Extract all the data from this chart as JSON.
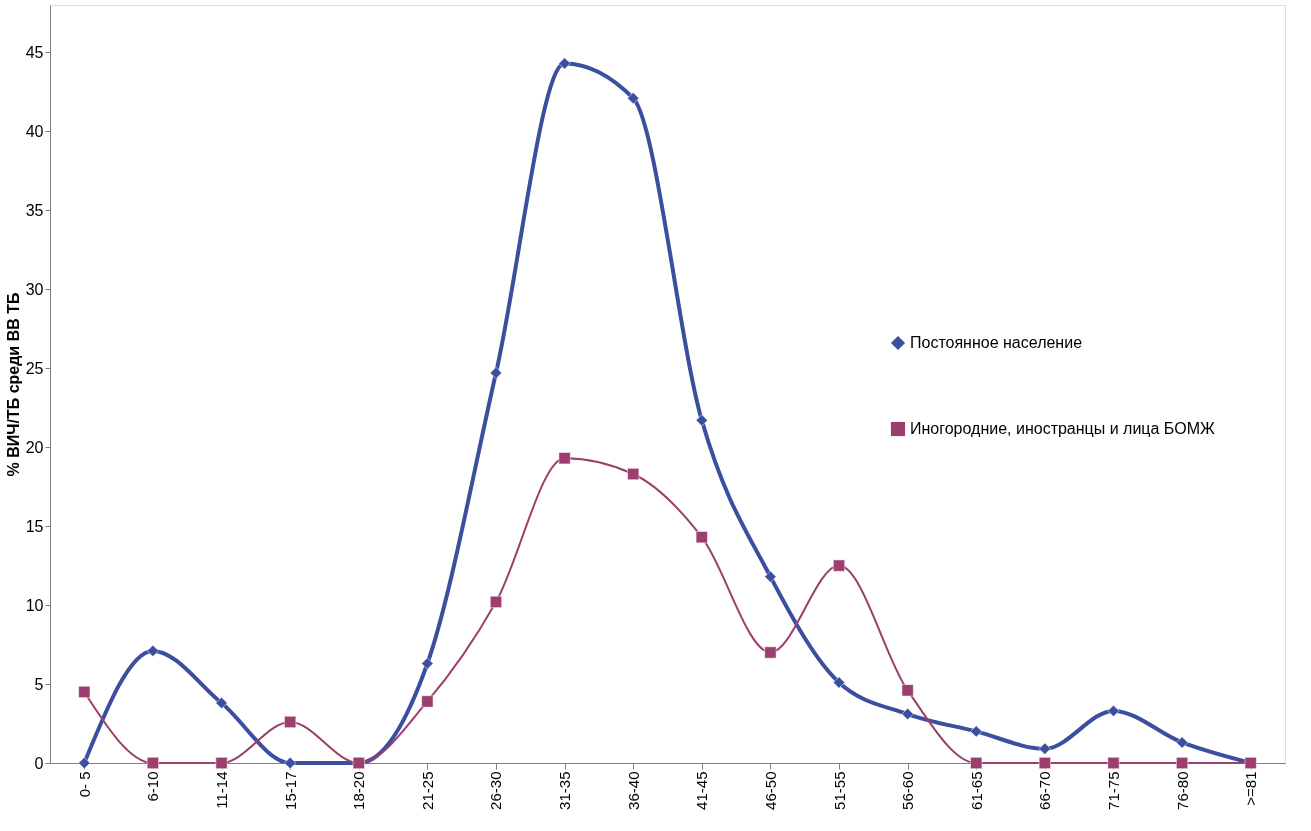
{
  "chart_data": {
    "type": "line",
    "ylabel": "% ВИЧ/ТБ среди ВВ ТБ",
    "categories": [
      "0- 5",
      "6-10",
      "11-14",
      "15-17",
      "18-20",
      "21-25",
      "26-30",
      "31-35",
      "36-40",
      "41-45",
      "46-50",
      "51-55",
      "56-60",
      "61-65",
      "66-70",
      "71-75",
      "76-80",
      ">=81"
    ],
    "series": [
      {
        "name": "Постоянное население",
        "color": "#3c4f9e",
        "marker": "diamond",
        "values": [
          0,
          7.1,
          3.8,
          0,
          0,
          6.3,
          24.7,
          44.3,
          42.1,
          21.7,
          11.8,
          5.1,
          3.1,
          2.0,
          0.9,
          3.3,
          1.3,
          0
        ]
      },
      {
        "name": "Иногородние, иностранцы и лица БОМЖ",
        "color": "#9c3f6e",
        "marker": "square",
        "values": [
          4.5,
          0,
          0,
          2.6,
          0,
          3.9,
          10.2,
          19.3,
          18.3,
          14.3,
          7.0,
          12.5,
          4.6,
          0,
          0,
          0,
          0,
          0
        ]
      }
    ],
    "ylim": [
      0,
      48
    ],
    "yticks": [
      0,
      5,
      10,
      15,
      20,
      25,
      30,
      35,
      40,
      45
    ],
    "grid": false,
    "legend": "right",
    "line_style": "solid"
  }
}
